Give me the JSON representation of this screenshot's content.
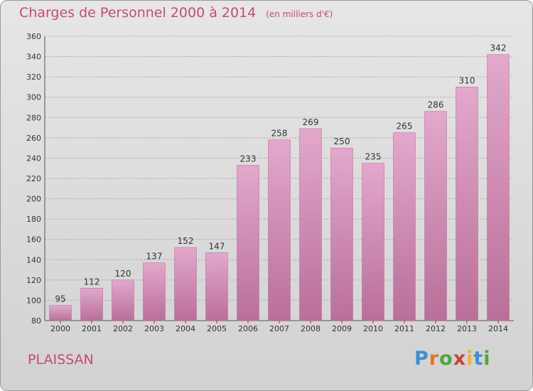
{
  "title": "Charges de Personnel 2000 à 2014",
  "subtitle": "(en milliers d'€)",
  "commune": "PLAISSAN",
  "logo_text": "Proxiti",
  "colors": {
    "bar_top": "#e3a8cc",
    "bar_bottom": "#b96f99",
    "accent_text": "#c44a7c",
    "logo_letters": [
      "#3b8fd6",
      "#e8741c",
      "#4aa83f",
      "#d23c3c",
      "#f0b51c",
      "#3b8fd6",
      "#4aa83f"
    ]
  },
  "chart_data": {
    "type": "bar",
    "categories": [
      "2000",
      "2001",
      "2002",
      "2003",
      "2004",
      "2005",
      "2006",
      "2007",
      "2008",
      "2009",
      "2010",
      "2011",
      "2012",
      "2013",
      "2014"
    ],
    "values": [
      95,
      112,
      120,
      137,
      152,
      147,
      233,
      258,
      269,
      250,
      235,
      265,
      286,
      310,
      342
    ],
    "title": "Charges de Personnel 2000 à 2014",
    "subtitle": "(en milliers d'€)",
    "xlabel": "",
    "ylabel": "",
    "ylim": [
      80,
      360
    ],
    "yticks": [
      80,
      100,
      120,
      140,
      160,
      180,
      200,
      220,
      240,
      260,
      280,
      300,
      320,
      340,
      360
    ],
    "grid": true,
    "data_labels": true
  }
}
